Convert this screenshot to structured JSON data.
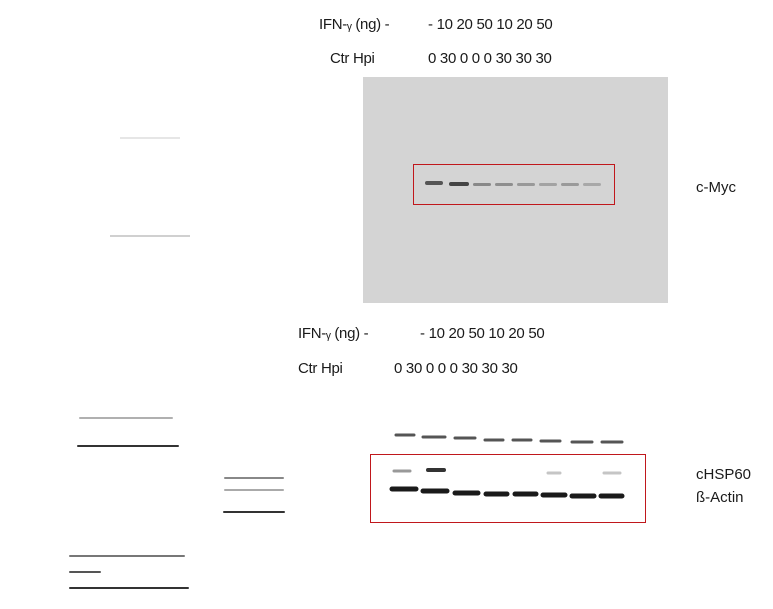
{
  "top_panel": {
    "ifn_label": "IFN-ᵧ (ng) -",
    "ifn_values": "- 10 20 50 10 20 50",
    "hpi_label": "Ctr Hpi",
    "hpi_values": "0 30 0 0 0 30 30 30",
    "marker": "c-Myc"
  },
  "bottom_panel": {
    "ifn_label": "IFN-ᵧ (ng) -",
    "ifn_values": "- 10 20 50 10 20 50",
    "hpi_label": "Ctr Hpi",
    "hpi_values": "0 30 0 0 0 30 30 30",
    "marker_1": "cHSP60",
    "marker_2": "ß-Actin"
  },
  "colors": {
    "highlight_box": "#c0171c",
    "gel_background": "#d4d4d4"
  }
}
